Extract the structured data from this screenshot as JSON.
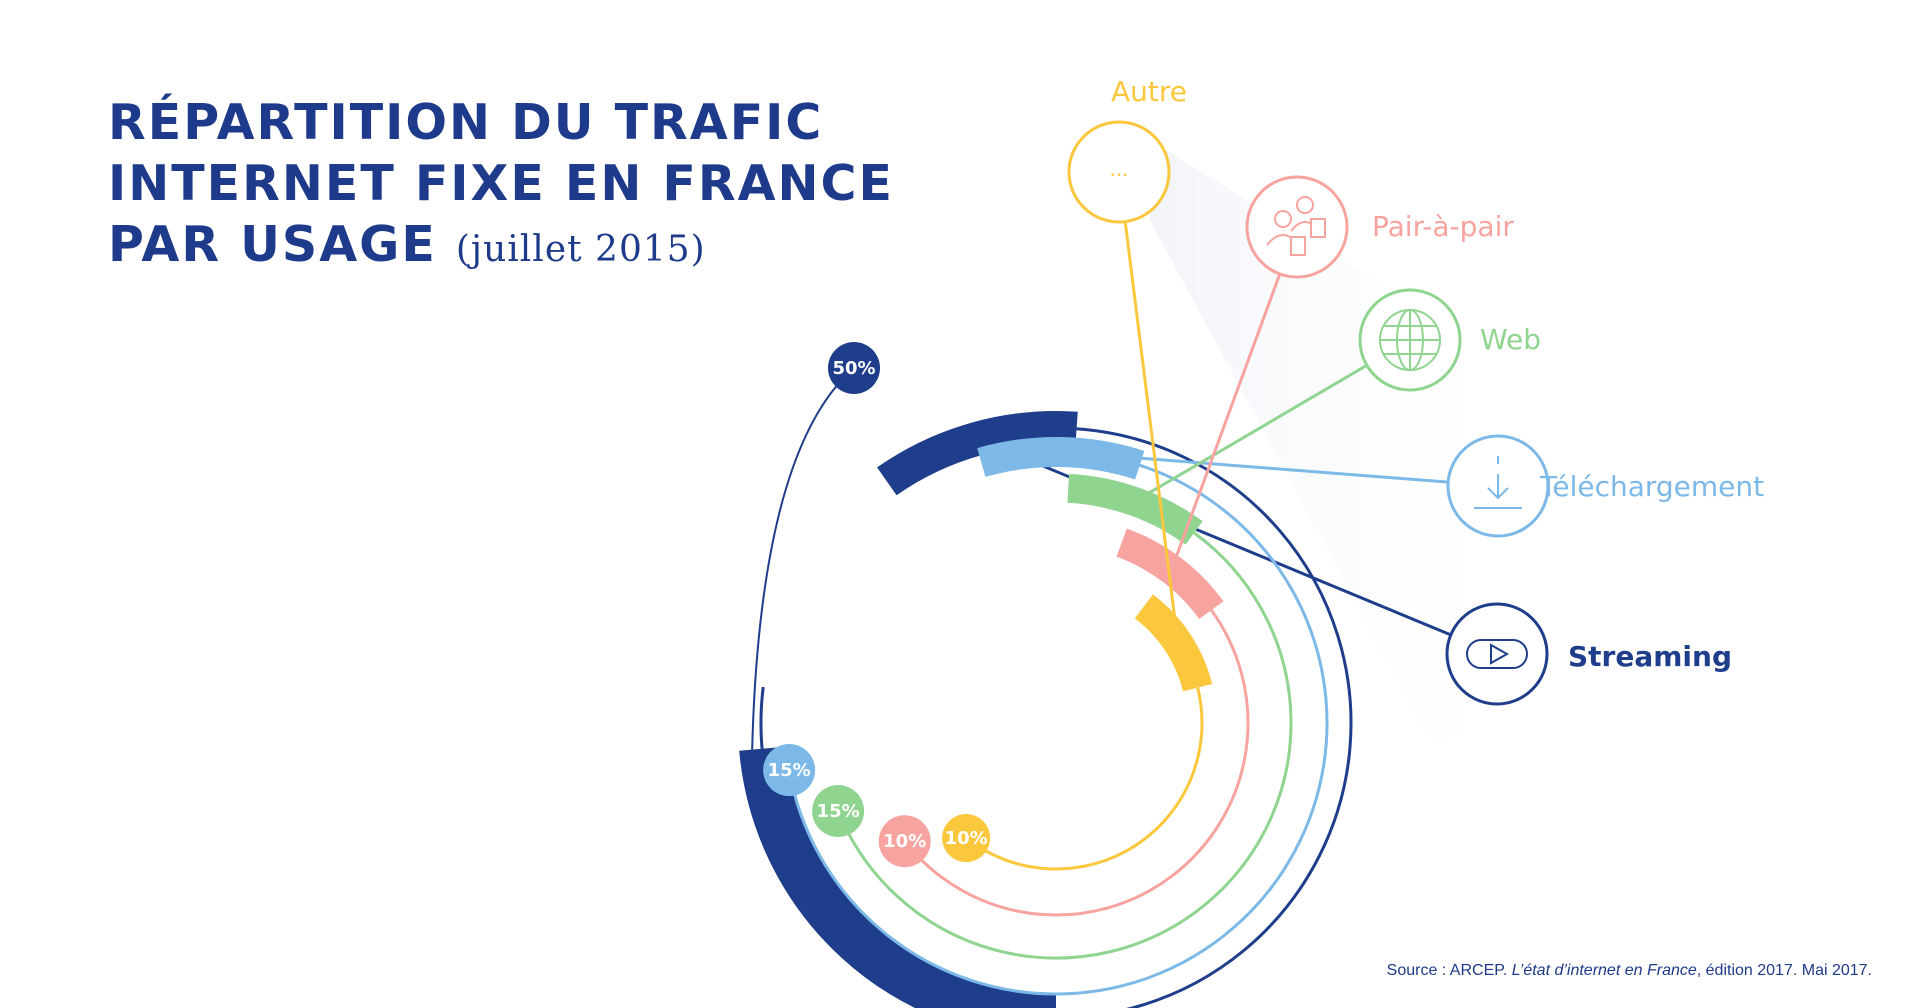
{
  "title": {
    "line1": "RÉPARTITION DU TRAFIC",
    "line2": "INTERNET FIXE EN FRANCE",
    "line3": "PAR USAGE",
    "date": "(juillet 2015)"
  },
  "source": {
    "prefix": "Source : ARCEP. ",
    "italic": "L’état d’internet en France",
    "suffix": ", édition 2017. Mai 2017."
  },
  "colors": {
    "title": "#1e3a8a",
    "streaming": "#1e3d8a",
    "telechargement": "#7db9e8",
    "web": "#8fd48f",
    "pair_a_pair": "#f7a3a0",
    "autre": "#fbc73d"
  },
  "chart_data": {
    "type": "radial-bar",
    "title": "RÉPARTITION DU TRAFIC INTERNET FIXE EN FRANCE PAR USAGE (juillet 2015)",
    "unit": "%",
    "series": [
      {
        "name": "Streaming",
        "value": 50,
        "label": "50%",
        "color": "#1e3d8a",
        "icon": "play-icon"
      },
      {
        "name": "Téléchargement",
        "value": 15,
        "label": "15%",
        "color": "#7db9e8",
        "icon": "download-icon"
      },
      {
        "name": "Web",
        "value": 15,
        "label": "15%",
        "color": "#8fd48f",
        "icon": "globe-icon"
      },
      {
        "name": "Pair-à-pair",
        "value": 10,
        "label": "10%",
        "color": "#f7a3a0",
        "icon": "people-exchange-icon"
      },
      {
        "name": "Autre",
        "value": 10,
        "label": "10%",
        "color": "#fbc73d",
        "icon": "ellipsis-icon"
      }
    ],
    "autre_icon_text": "..."
  }
}
